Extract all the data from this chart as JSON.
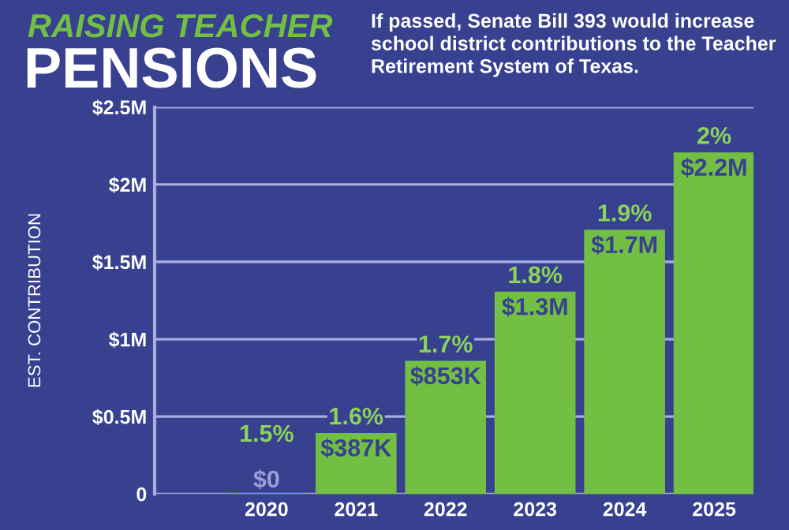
{
  "chart_data": {
    "type": "bar",
    "title": "RAISING TEACHER PENSIONS",
    "subtitle": "If passed, Senate Bill 393 would increase school district contributions to the Teacher Retirement System of Texas.",
    "ylabel": "EST. CONTRIBUTION",
    "categories": [
      "2020",
      "2021",
      "2022",
      "2023",
      "2024",
      "2025"
    ],
    "values": [
      0,
      387000,
      853000,
      1300000,
      1700000,
      2200000
    ],
    "value_labels": [
      "$0",
      "$387K",
      "$853K",
      "$1.3M",
      "$1.7M",
      "$2.2M"
    ],
    "color": "#72bf44",
    "annotations": [
      {
        "text": "1.5%",
        "x": "2020",
        "y": 0
      },
      {
        "text": "1.6%",
        "x": "2021",
        "y": 387000
      },
      {
        "text": "1.7%",
        "x": "2022",
        "y": 853000
      },
      {
        "text": "1.8%",
        "x": "2023",
        "y": 1300000
      },
      {
        "text": "1.9%",
        "x": "2024",
        "y": 1700000
      },
      {
        "text": "2%",
        "x": "2025",
        "y": 2200000
      }
    ],
    "ylim": [
      0,
      2500000
    ],
    "yticks": [
      0,
      {
        "value": 500000,
        "label": "$0.5M"
      },
      {
        "value": 1000000,
        "label": "$1M"
      },
      {
        "value": 1500000,
        "label": "$1.5M"
      },
      {
        "value": 2000000,
        "label": "$2M"
      },
      {
        "value": 2500000,
        "label": "$2.5M"
      }
    ],
    "grid": "y"
  }
}
